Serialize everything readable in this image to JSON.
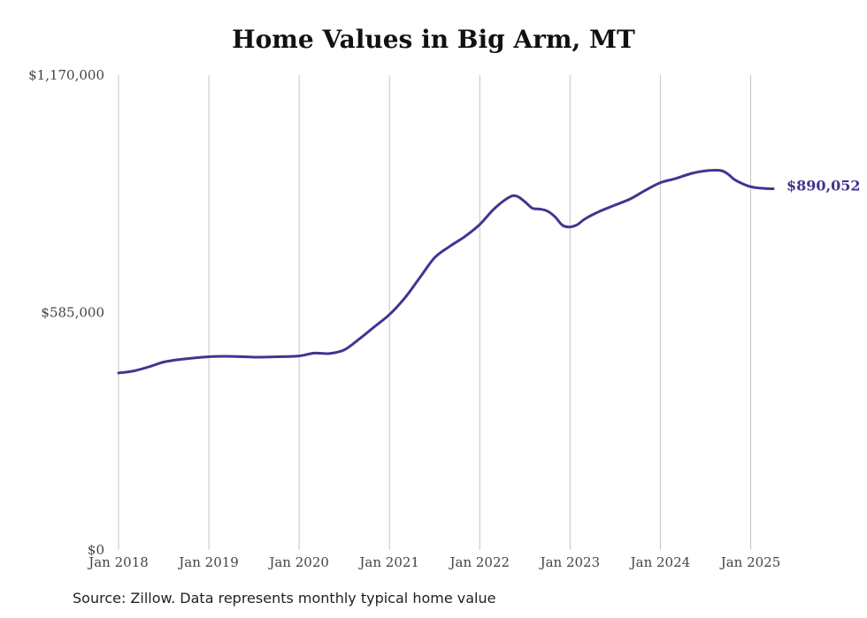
{
  "chart_data": {
    "type": "line",
    "title": "Home Values in Big Arm, MT",
    "xlabel": "",
    "ylabel": "",
    "ylim": [
      0,
      1170000
    ],
    "xlim": [
      "2018-01",
      "2025-04"
    ],
    "yticks": [
      {
        "value": 0,
        "label": "$0"
      },
      {
        "value": 585000,
        "label": "$585,000"
      },
      {
        "value": 1170000,
        "label": "$1,170,000"
      }
    ],
    "xticks": [
      {
        "value": "2018-01",
        "label": "Jan 2018"
      },
      {
        "value": "2019-01",
        "label": "Jan 2019"
      },
      {
        "value": "2020-01",
        "label": "Jan 2020"
      },
      {
        "value": "2021-01",
        "label": "Jan 2021"
      },
      {
        "value": "2022-01",
        "label": "Jan 2022"
      },
      {
        "value": "2023-01",
        "label": "Jan 2023"
      },
      {
        "value": "2024-01",
        "label": "Jan 2024"
      },
      {
        "value": "2025-01",
        "label": "Jan 2025"
      }
    ],
    "grid": "vertical",
    "legend": "none",
    "line_color": "#3f3690",
    "end_label": "$890,052",
    "series": [
      {
        "x": [
          "2018-01",
          "2018-03",
          "2018-05",
          "2018-07",
          "2018-09",
          "2019-01",
          "2019-04",
          "2019-07",
          "2019-10",
          "2020-01",
          "2020-03",
          "2020-05",
          "2020-07",
          "2020-09",
          "2020-11",
          "2021-01",
          "2021-03",
          "2021-05",
          "2021-07",
          "2021-09",
          "2021-11",
          "2022-01",
          "2022-03",
          "2022-05",
          "2022-06",
          "2022-07",
          "2022-08",
          "2022-09",
          "2022-10",
          "2022-11",
          "2022-12",
          "2023-01",
          "2023-02",
          "2023-03",
          "2023-05",
          "2023-07",
          "2023-09",
          "2023-11",
          "2024-01",
          "2024-03",
          "2024-05",
          "2024-07",
          "2024-09",
          "2024-10",
          "2024-11",
          "2025-01",
          "2025-03",
          "2025-04"
        ],
        "y": [
          436000,
          441000,
          451000,
          463000,
          469000,
          476000,
          477000,
          475000,
          476000,
          478000,
          485000,
          484000,
          493000,
          520000,
          550000,
          580000,
          620000,
          670000,
          720000,
          748000,
          772000,
          802000,
          842000,
          870000,
          871000,
          858000,
          842000,
          840000,
          835000,
          821000,
          800000,
          796000,
          802000,
          816000,
          835000,
          850000,
          865000,
          886000,
          905000,
          915000,
          927000,
          934000,
          935000,
          926000,
          911000,
          895000,
          890500,
          890052
        ]
      }
    ]
  },
  "footer": {
    "source": "Source: Zillow. Data represents monthly typical home value"
  }
}
